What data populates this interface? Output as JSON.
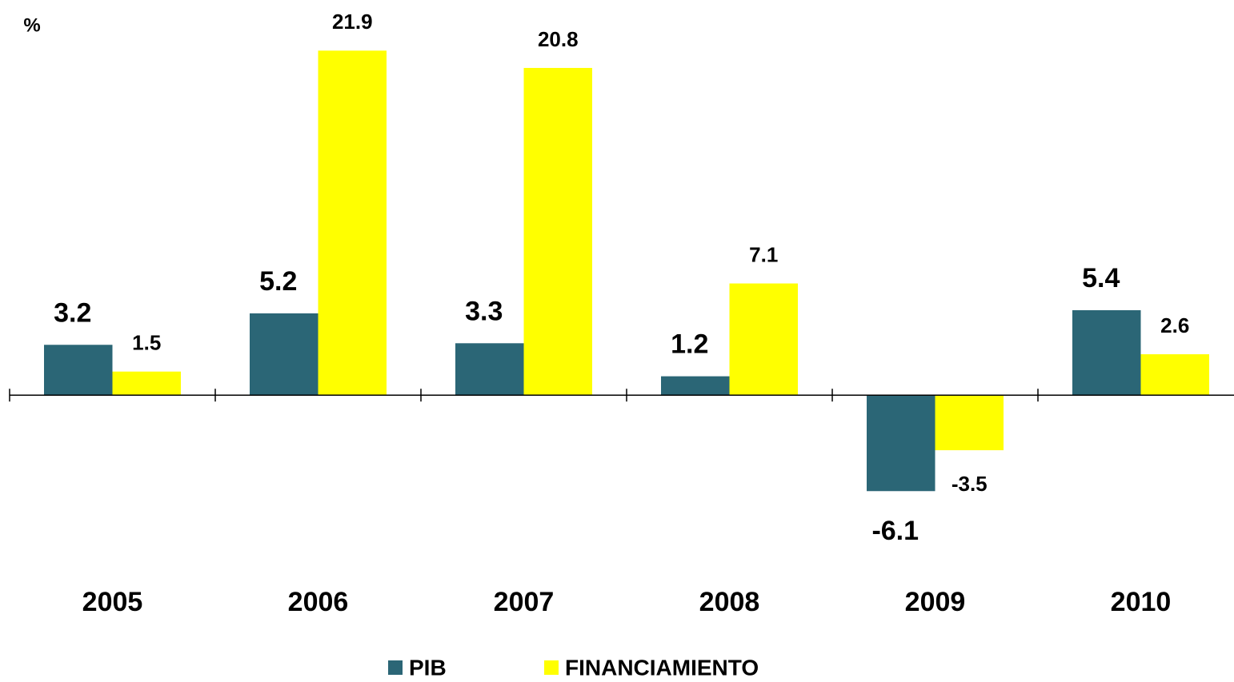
{
  "chart_data": {
    "type": "bar",
    "y_label": "%",
    "categories": [
      "2005",
      "2006",
      "2007",
      "2008",
      "2009",
      "2010"
    ],
    "series": [
      {
        "name": "PIB",
        "color": "#2b6676",
        "values": [
          3.2,
          5.2,
          3.3,
          1.2,
          -6.1,
          5.4
        ]
      },
      {
        "name": "FINANCIAMIENTO",
        "color": "#ffff00",
        "values": [
          1.5,
          21.9,
          20.8,
          7.1,
          -3.5,
          2.6
        ]
      }
    ],
    "ylim": [
      -10,
      24
    ],
    "grid": false
  }
}
